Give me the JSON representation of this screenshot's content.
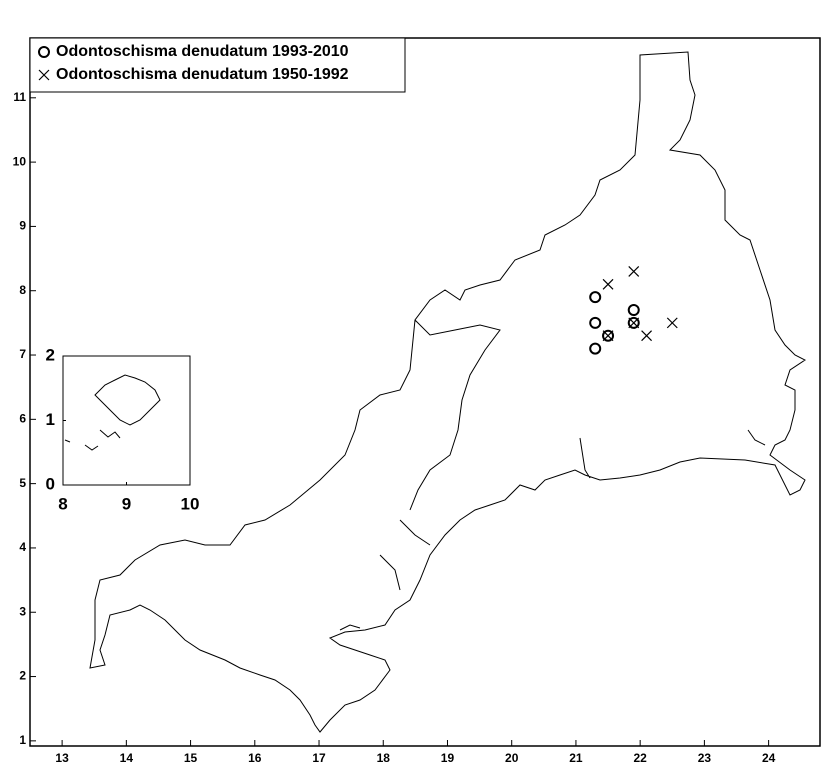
{
  "chart_data": [
    {
      "type": "scatter",
      "xlim": [
        12.5,
        24.8
      ],
      "ylim": [
        0.92,
        11.93
      ],
      "xticks": [
        13,
        14,
        15,
        16,
        17,
        18,
        19,
        20,
        21,
        22,
        23,
        24
      ],
      "yticks": [
        1,
        2,
        3,
        4,
        5,
        6,
        7,
        8,
        9,
        10,
        11
      ],
      "legend": "upper left",
      "series": [
        {
          "name": "Odontoschisma denudatum 1993-2010",
          "color": "#000000",
          "marker": "circle",
          "x": [
            21.3,
            21.3,
            21.5,
            21.9,
            21.9,
            21.3
          ],
          "values": [
            7.9,
            7.5,
            7.3,
            7.7,
            7.5,
            7.1
          ]
        },
        {
          "name": "Odontoschisma denudatum 1950-1992",
          "color": "#000000",
          "marker": "cross",
          "x": [
            21.5,
            21.9,
            21.5,
            21.9,
            22.1,
            22.5
          ],
          "values": [
            8.1,
            8.3,
            7.3,
            7.5,
            7.3,
            7.5
          ]
        }
      ]
    },
    {
      "type": "map",
      "xlim": [
        8,
        10
      ],
      "ylim": [
        0,
        2
      ],
      "xticks": [
        8,
        9,
        10
      ],
      "yticks": [
        0,
        1,
        2
      ]
    }
  ]
}
